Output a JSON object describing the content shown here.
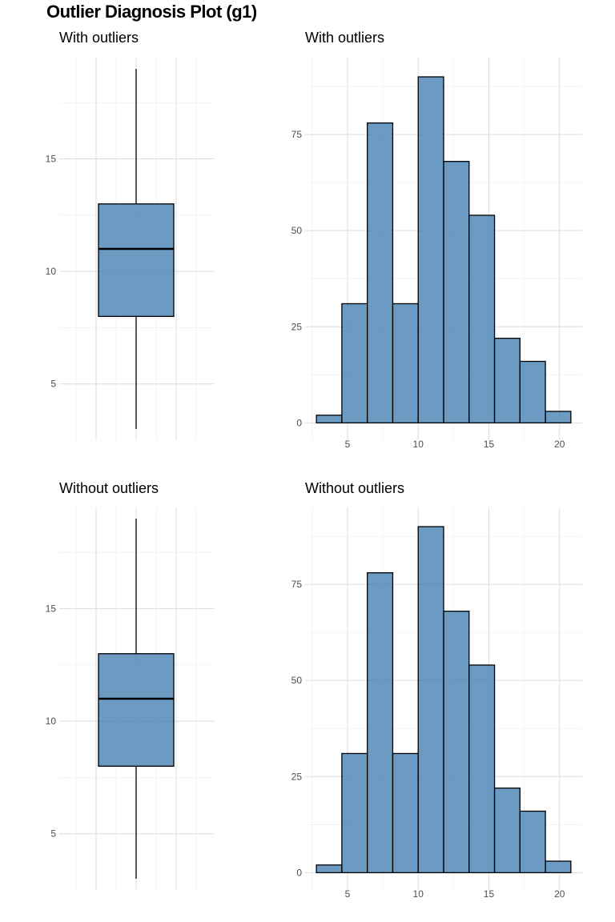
{
  "title": "Outlier Diagnosis Plot (g1)",
  "colors": {
    "fill": "#4682b4",
    "stroke": "#000000",
    "grid": "#dcdcdc"
  },
  "chart_data": [
    {
      "type": "boxplot",
      "title": "With outliers",
      "stats": {
        "min": 3,
        "q1": 8,
        "median": 11,
        "q3": 13,
        "max": 19
      },
      "ylim": [
        2.5,
        19.5
      ],
      "yticks": [
        5,
        10,
        15
      ]
    },
    {
      "type": "bar",
      "title": "With outliers",
      "bins": [
        {
          "x0": 2.8,
          "x1": 4.6,
          "count": 2
        },
        {
          "x0": 4.6,
          "x1": 6.4,
          "count": 31
        },
        {
          "x0": 6.4,
          "x1": 8.2,
          "count": 78
        },
        {
          "x0": 8.2,
          "x1": 10.0,
          "count": 31
        },
        {
          "x0": 10.0,
          "x1": 11.8,
          "count": 90
        },
        {
          "x0": 11.8,
          "x1": 13.6,
          "count": 68
        },
        {
          "x0": 13.6,
          "x1": 15.4,
          "count": 54
        },
        {
          "x0": 15.4,
          "x1": 17.2,
          "count": 22
        },
        {
          "x0": 17.2,
          "x1": 19.0,
          "count": 16
        },
        {
          "x0": 19.0,
          "x1": 20.8,
          "count": 3
        }
      ],
      "xlim": [
        2.0,
        21.6
      ],
      "ylim": [
        -4.5,
        95
      ],
      "xticks": [
        5,
        10,
        15,
        20
      ],
      "yticks": [
        0,
        25,
        50,
        75
      ]
    },
    {
      "type": "boxplot",
      "title": "Without outliers",
      "stats": {
        "min": 3,
        "q1": 8,
        "median": 11,
        "q3": 13,
        "max": 19
      },
      "ylim": [
        2.5,
        19.5
      ],
      "yticks": [
        5,
        10,
        15
      ]
    },
    {
      "type": "bar",
      "title": "Without outliers",
      "bins": [
        {
          "x0": 2.8,
          "x1": 4.6,
          "count": 2
        },
        {
          "x0": 4.6,
          "x1": 6.4,
          "count": 31
        },
        {
          "x0": 6.4,
          "x1": 8.2,
          "count": 78
        },
        {
          "x0": 8.2,
          "x1": 10.0,
          "count": 31
        },
        {
          "x0": 10.0,
          "x1": 11.8,
          "count": 90
        },
        {
          "x0": 11.8,
          "x1": 13.6,
          "count": 68
        },
        {
          "x0": 13.6,
          "x1": 15.4,
          "count": 54
        },
        {
          "x0": 15.4,
          "x1": 17.2,
          "count": 22
        },
        {
          "x0": 17.2,
          "x1": 19.0,
          "count": 16
        },
        {
          "x0": 19.0,
          "x1": 20.8,
          "count": 3
        }
      ],
      "xlim": [
        2.0,
        21.6
      ],
      "ylim": [
        -4.5,
        95
      ],
      "xticks": [
        5,
        10,
        15,
        20
      ],
      "yticks": [
        0,
        25,
        50,
        75
      ]
    }
  ]
}
